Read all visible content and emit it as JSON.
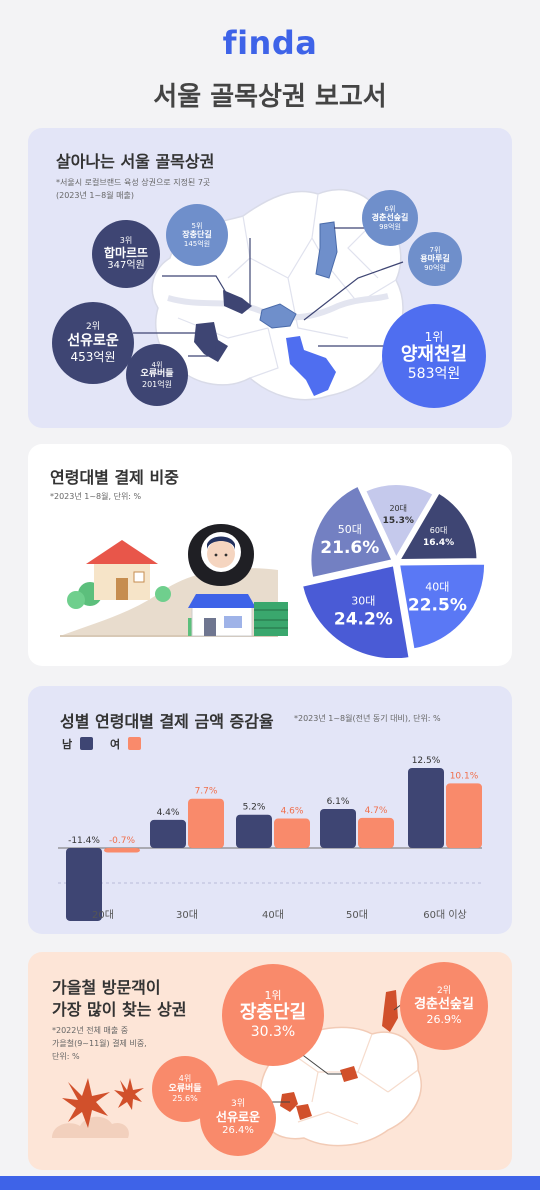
{
  "brand": {
    "logo": "finda"
  },
  "title": "서울 골목상권 보고서",
  "colors": {
    "accent": "#3e63e8",
    "male": "#3e4573",
    "female": "#f98a6b"
  },
  "section1": {
    "title": "살아나는 서울 골목상권",
    "note1": "*서울시 로컬브랜드 육성 상권으로 지정된 7곳",
    "note2": "(2023년 1~8월 매출)",
    "items": [
      {
        "rank": "1위",
        "name": "양재천길",
        "value": "583억원"
      },
      {
        "rank": "2위",
        "name": "선유로운",
        "value": "453억원"
      },
      {
        "rank": "3위",
        "name": "합마르뜨",
        "value": "347억원"
      },
      {
        "rank": "4위",
        "name": "오류버들",
        "value": "201억원"
      },
      {
        "rank": "5위",
        "name": "장충단길",
        "value": "145억원"
      },
      {
        "rank": "6위",
        "name": "경춘선숲길",
        "value": "98억원"
      },
      {
        "rank": "7위",
        "name": "용마루길",
        "value": "90억원"
      }
    ]
  },
  "section2": {
    "title": "연령대별 결제 비중",
    "note": "*2023년 1~8월, 단위: %"
  },
  "section3": {
    "title": "성별 연령대별 결제 금액 증감율",
    "note": "*2023년 1~8월(전년 동기 대비), 단위: %",
    "legend": {
      "male": "남",
      "female": "여"
    }
  },
  "section4": {
    "title1": "가을철 방문객이",
    "title2": "가장 많이 찾는 상권",
    "note1": "*2022년 전체 매출 중",
    "note2": "가을철(9~11월) 결제 비중,",
    "note3": "단위: %",
    "items": [
      {
        "rank": "1위",
        "name": "장충단길",
        "value": "30.3%"
      },
      {
        "rank": "2위",
        "name": "경춘선숲길",
        "value": "26.9%"
      },
      {
        "rank": "3위",
        "name": "선유로운",
        "value": "26.4%"
      },
      {
        "rank": "4위",
        "name": "오류버들",
        "value": "25.6%"
      }
    ]
  },
  "chart_data": [
    {
      "type": "pie",
      "title": "연령대별 결제 비중",
      "categories": [
        "20대",
        "30대",
        "40대",
        "50대",
        "60대"
      ],
      "values": [
        15.3,
        24.2,
        22.5,
        21.6,
        16.4
      ],
      "labels": [
        "15.3%",
        "24.2%",
        "22.5%",
        "21.6%",
        "16.4%"
      ]
    },
    {
      "type": "bar",
      "title": "성별 연령대별 결제 금액 증감율",
      "categories": [
        "20대",
        "30대",
        "40대",
        "50대",
        "60대 이상"
      ],
      "series": [
        {
          "name": "남",
          "values": [
            -11.4,
            4.4,
            5.2,
            6.1,
            12.5
          ],
          "labels": [
            "-11.4%",
            "4.4%",
            "5.2%",
            "6.1%",
            "12.5%"
          ]
        },
        {
          "name": "여",
          "values": [
            -0.7,
            7.7,
            4.6,
            4.7,
            10.1
          ],
          "labels": [
            "-0.7%",
            "7.7%",
            "4.6%",
            "4.7%",
            "10.1%"
          ]
        }
      ]
    }
  ]
}
